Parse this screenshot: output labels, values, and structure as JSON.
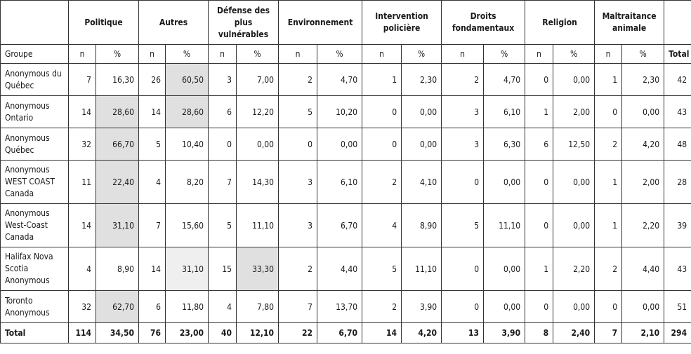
{
  "header": {
    "categories": [
      "Politique",
      "Autres",
      "Défense des plus vulnérables",
      "Environnement",
      "Intervention policière",
      "Droits fondamentaux",
      "Religion",
      "Maltraitance animale"
    ],
    "group_label": "Groupe",
    "n_label": "n",
    "pct_label": "%",
    "total_label": "Total"
  },
  "rows": [
    {
      "group": "Anonymous du Québec",
      "cells": [
        "7",
        "16,30",
        "26",
        "60,50",
        "3",
        "7,00",
        "2",
        "4,70",
        "1",
        "2,30",
        "2",
        "4,70",
        "0",
        "0,00",
        "1",
        "2,30"
      ],
      "total": "42"
    },
    {
      "group": "Anonymous Ontario",
      "cells": [
        "14",
        "28,60",
        "14",
        "28,60",
        "6",
        "12,20",
        "5",
        "10,20",
        "0",
        "0,00",
        "3",
        "6,10",
        "1",
        "2,00",
        "0",
        "0,00"
      ],
      "total": "43"
    },
    {
      "group": "Anonymous Québec",
      "cells": [
        "32",
        "66,70",
        "5",
        "10,40",
        "0",
        "0,00",
        "0",
        "0,00",
        "0",
        "0,00",
        "3",
        "6,30",
        "6",
        "12,50",
        "2",
        "4,20"
      ],
      "total": "48"
    },
    {
      "group": "Anonymous WEST COAST Canada",
      "cells": [
        "11",
        "22,40",
        "4",
        "8,20",
        "7",
        "14,30",
        "3",
        "6,10",
        "2",
        "4,10",
        "0",
        "0,00",
        "0",
        "0,00",
        "1",
        "2,00"
      ],
      "total": "28"
    },
    {
      "group": "Anonymous West-Coast Canada",
      "cells": [
        "14",
        "31,10",
        "7",
        "15,60",
        "5",
        "11,10",
        "3",
        "6,70",
        "4",
        "8,90",
        "5",
        "11,10",
        "0",
        "0,00",
        "1",
        "2,20"
      ],
      "total": "39"
    },
    {
      "group": "Halifax Nova Scotia Anonymous",
      "cells": [
        "4",
        "8,90",
        "14",
        "31,10",
        "15",
        "33,30",
        "2",
        "4,40",
        "5",
        "11,10",
        "0",
        "0,00",
        "1",
        "2,20",
        "2",
        "4,40"
      ],
      "total": "43"
    },
    {
      "group": "Toronto Anonymous",
      "cells": [
        "32",
        "62,70",
        "6",
        "11,80",
        "4",
        "7,80",
        "7",
        "13,70",
        "2",
        "3,90",
        "0",
        "0,00",
        "0",
        "0,00",
        "0",
        "0,00"
      ],
      "total": "51"
    }
  ],
  "total_row": {
    "label": "Total",
    "cells": [
      "114",
      "34,50",
      "76",
      "23,00",
      "40",
      "12,10",
      "22",
      "6,70",
      "14",
      "4,20",
      "13",
      "3,90",
      "8",
      "2,40",
      "7",
      "2,10"
    ],
    "total": "294"
  },
  "highlights": {
    "dark": [
      [
        0,
        3
      ],
      [
        1,
        1
      ],
      [
        1,
        3
      ],
      [
        2,
        1
      ],
      [
        3,
        1
      ],
      [
        4,
        1
      ],
      [
        5,
        5
      ],
      [
        6,
        1
      ]
    ],
    "light": [
      [
        5,
        3
      ]
    ],
    "dark_color": "#e0e0e0",
    "light_color": "#efefef"
  }
}
